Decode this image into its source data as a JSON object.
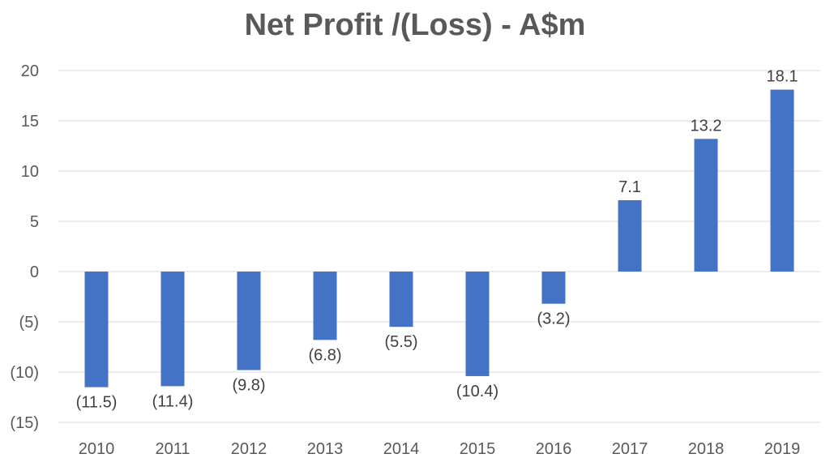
{
  "chart_data": {
    "type": "bar",
    "title": "Net Profit /(Loss) - A$m",
    "xlabel": "",
    "ylabel": "",
    "categories": [
      "2010",
      "2011",
      "2012",
      "2013",
      "2014",
      "2015",
      "2016",
      "2017",
      "2018",
      "2019"
    ],
    "values": [
      -11.5,
      -11.4,
      -9.8,
      -6.8,
      -5.5,
      -10.4,
      -3.2,
      7.1,
      13.2,
      18.1
    ],
    "data_labels": [
      "(11.5)",
      "(11.4)",
      "(9.8)",
      "(6.8)",
      "(5.5)",
      "(10.4)",
      "(3.2)",
      "7.1",
      "13.2",
      "18.1"
    ],
    "ylim": [
      -15,
      20
    ],
    "yticks": [
      20,
      15,
      10,
      5,
      0,
      -5,
      -10,
      -15
    ],
    "ytick_labels": [
      "20",
      "15",
      "10",
      "5",
      "0",
      "(5)",
      "(10)",
      "(15)"
    ],
    "grid": true,
    "legend": "none",
    "bar_color": "#4472C4"
  }
}
